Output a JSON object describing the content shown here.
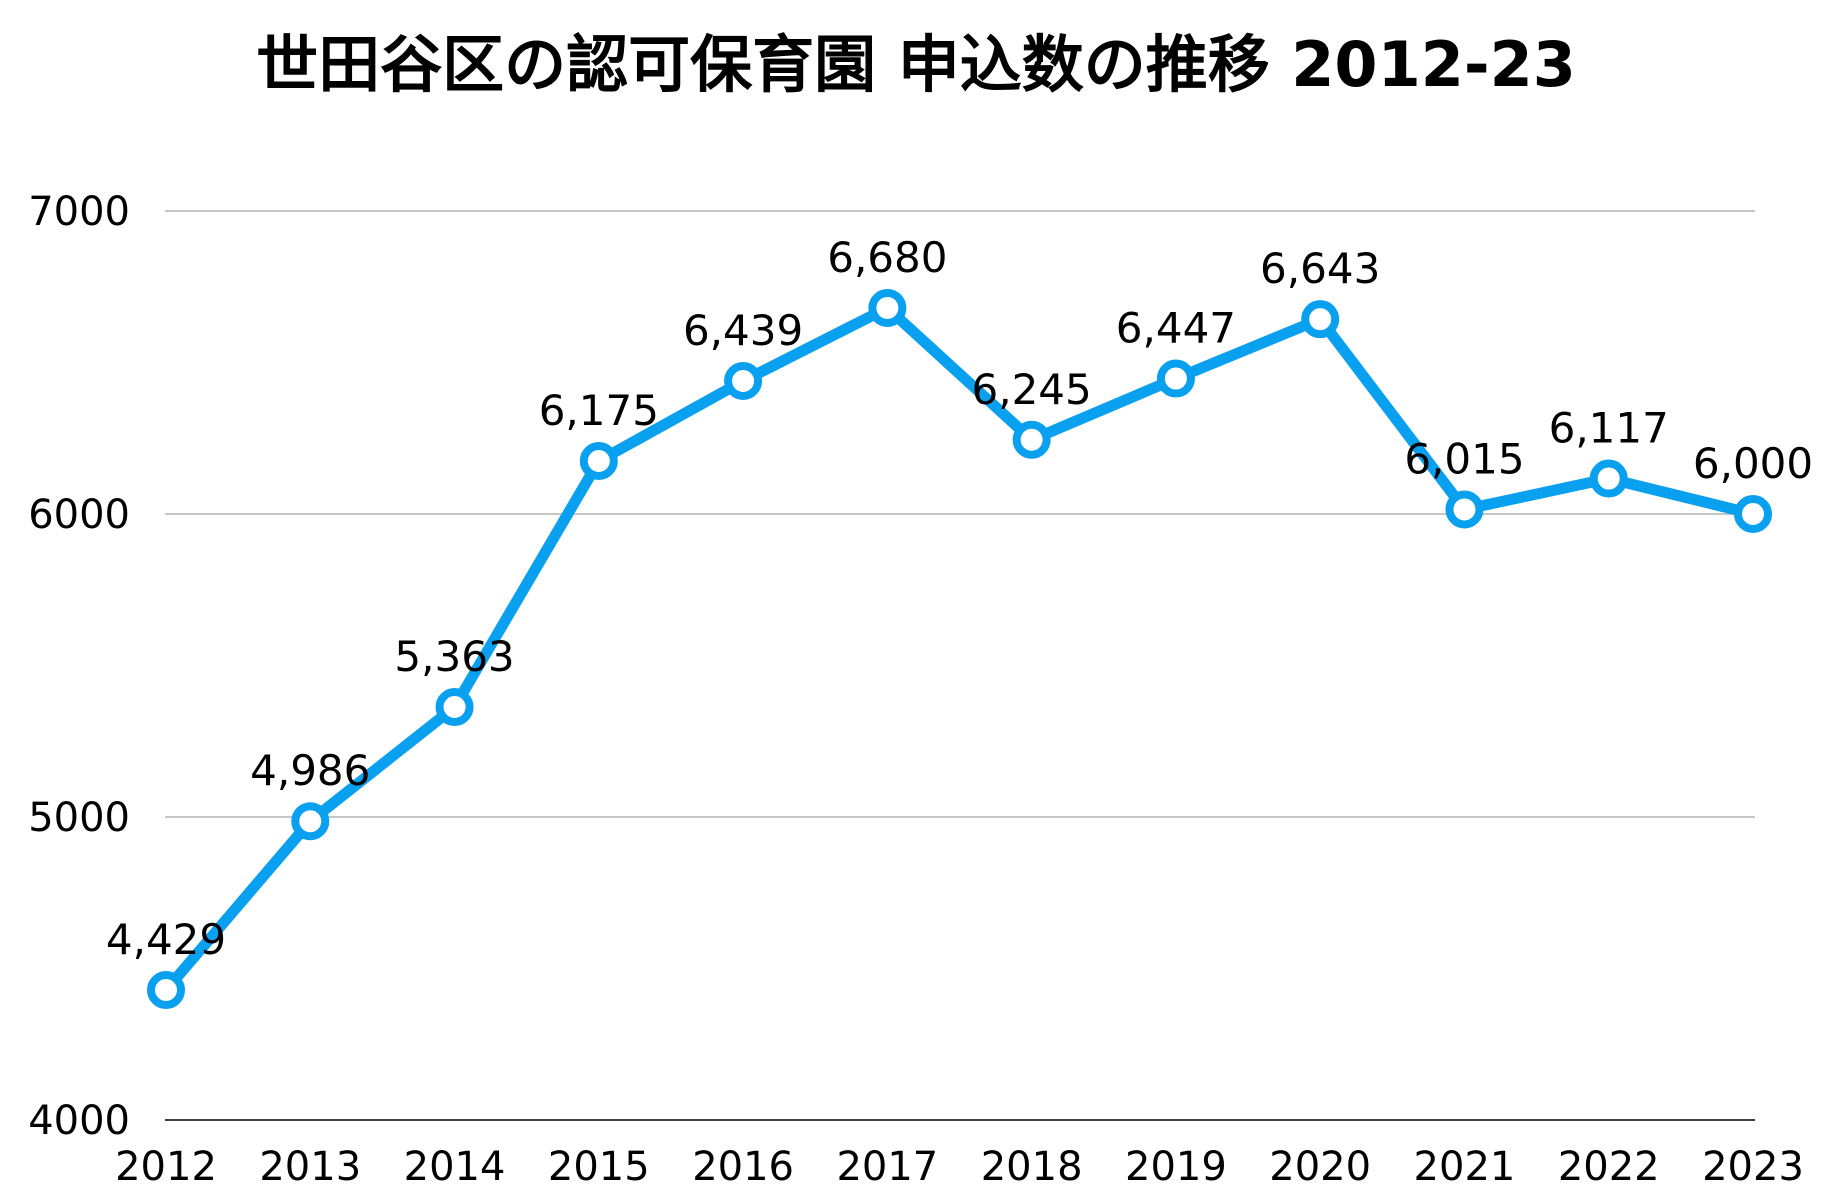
{
  "chart_data": {
    "type": "line",
    "title": "世田谷区の認可保育園 申込数の推移 2012-23",
    "xlabel": "",
    "ylabel": "",
    "categories": [
      "2012",
      "2013",
      "2014",
      "2015",
      "2016",
      "2017",
      "2018",
      "2019",
      "2020",
      "2021",
      "2022",
      "2023"
    ],
    "series": [
      {
        "values": [
          4429,
          4986,
          5363,
          6175,
          6439,
          6680,
          6245,
          6447,
          6643,
          6015,
          6117,
          6000
        ],
        "data_labels": [
          "4,429",
          "4,986",
          "5,363",
          "6,175",
          "6,439",
          "6,680",
          "6,245",
          "6,447",
          "6,643",
          "6,015",
          "6,117",
          "6,000"
        ]
      }
    ],
    "ylim": [
      4000,
      7000
    ],
    "yticks": [
      "4000",
      "5000",
      "6000",
      "7000"
    ],
    "grid": "horizontal",
    "legend": "none",
    "colors": {
      "line": "#0aa0f0",
      "marker_fill": "#ffffff",
      "grid": "#b4b4b4",
      "text": "#000000"
    }
  }
}
